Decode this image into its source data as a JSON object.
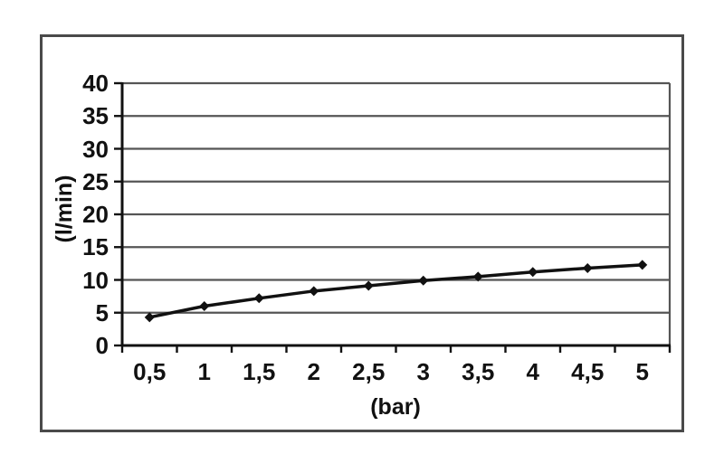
{
  "figure": {
    "background_color": "#ffffff",
    "frame_color": "#4a4a4a"
  },
  "colors": {
    "gridline": "#555555",
    "axis": "#111111",
    "series_line": "#111111",
    "marker_fill": "#111111",
    "text": "#111111"
  },
  "chart_data": {
    "type": "line",
    "title": "",
    "xlabel": "(bar)",
    "ylabel": "(l/min)",
    "x": [
      0.5,
      1,
      1.5,
      2,
      2.5,
      3,
      3.5,
      4,
      4.5,
      5
    ],
    "categories": [
      "0,5",
      "1",
      "1,5",
      "2",
      "2,5",
      "3",
      "3,5",
      "4",
      "4,5",
      "5"
    ],
    "values": [
      4.3,
      6.0,
      7.2,
      8.3,
      9.1,
      9.9,
      10.5,
      11.2,
      11.8,
      12.3
    ],
    "ylim": [
      0,
      40
    ],
    "ytick_step": 5,
    "ytick_labels": [
      "0",
      "5",
      "10",
      "15",
      "20",
      "25",
      "30",
      "35",
      "40"
    ],
    "grid": "horizontal",
    "legend_position": "none",
    "marker": "diamond"
  }
}
